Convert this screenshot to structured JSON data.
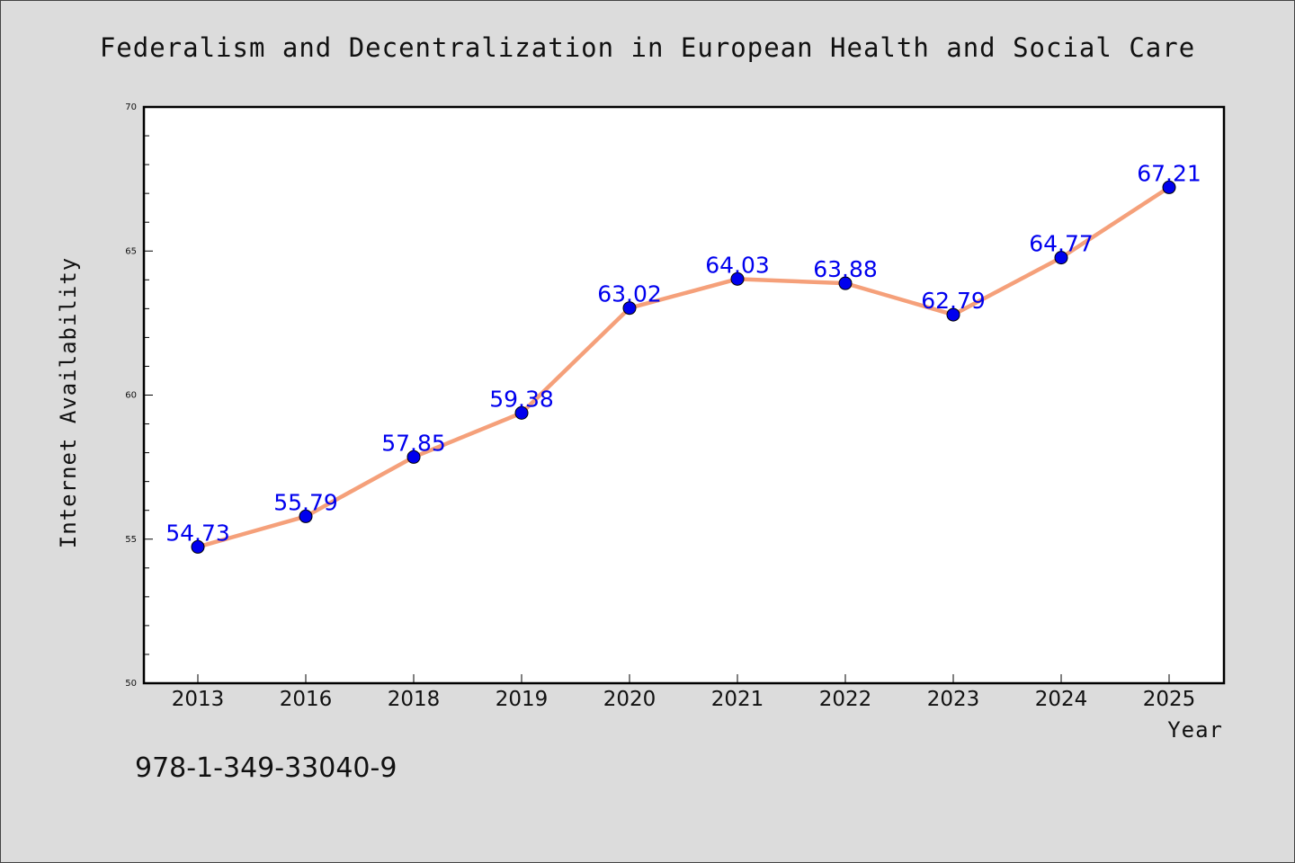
{
  "chart_data": {
    "type": "line",
    "title": "Federalism and Decentralization in European Health and Social Care",
    "xlabel": "Year",
    "ylabel": "Internet Availability",
    "categories": [
      "2013",
      "2016",
      "2018",
      "2019",
      "2020",
      "2021",
      "2022",
      "2023",
      "2024",
      "2025"
    ],
    "values": [
      54.73,
      55.79,
      57.85,
      59.38,
      63.02,
      64.03,
      63.88,
      62.79,
      64.77,
      67.21
    ],
    "data_labels": [
      "54.73",
      "55.79",
      "57.85",
      "59.38",
      "63.02",
      "64.03",
      "63.88",
      "62.79",
      "64.77",
      "67.21"
    ],
    "ylim": [
      50,
      70
    ],
    "yticks": [
      "50",
      "55",
      "60",
      "65",
      "70"
    ],
    "grid": false,
    "legend": "none",
    "line_color": "#f5a07a",
    "marker_color": "#0000ee",
    "label_color": "#0000ee",
    "background": "#dcdcdc",
    "plot_background": "#ffffff"
  },
  "footer": {
    "code": "978-1-349-33040-9"
  }
}
